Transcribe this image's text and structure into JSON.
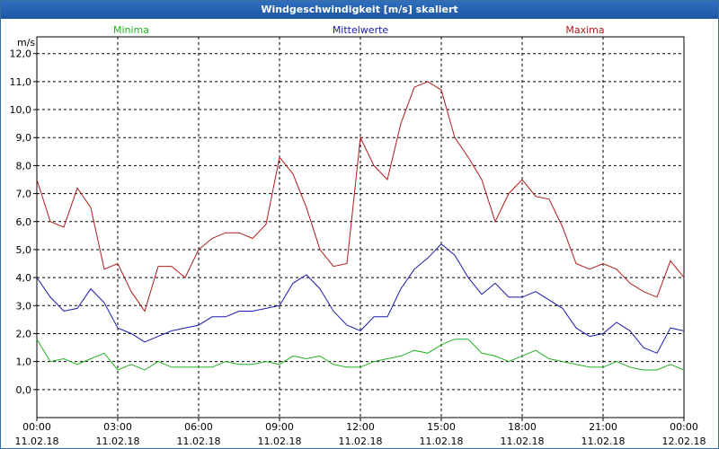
{
  "window": {
    "title": "Windgeschwindigkeit [m/s] skaliert"
  },
  "chart_data": {
    "type": "line",
    "title": "Windgeschwindigkeit [m/s] skaliert",
    "ylabel": "m/s",
    "xlabel": "",
    "ylim": [
      -1.0,
      12.6
    ],
    "xlim": [
      0,
      24
    ],
    "grid": true,
    "legend_placement": "top",
    "y_ticks": [
      "0,0",
      "1,0",
      "2,0",
      "3,0",
      "4,0",
      "5,0",
      "6,0",
      "7,0",
      "8,0",
      "9,0",
      "10,0",
      "11,0",
      "12,0"
    ],
    "x_ticks": [
      {
        "time": "00:00",
        "date": "11.02.18"
      },
      {
        "time": "03:00",
        "date": "11.02.18"
      },
      {
        "time": "06:00",
        "date": "11.02.18"
      },
      {
        "time": "09:00",
        "date": "11.02.18"
      },
      {
        "time": "12:00",
        "date": "11.02.18"
      },
      {
        "time": "15:00",
        "date": "11.02.18"
      },
      {
        "time": "18:00",
        "date": "11.02.18"
      },
      {
        "time": "21:00",
        "date": "11.02.18"
      },
      {
        "time": "00:00",
        "date": "12.02.18"
      }
    ],
    "series": [
      {
        "name": "Minima",
        "color": "#22b022",
        "points": [
          [
            0,
            1.8
          ],
          [
            0.5,
            1.0
          ],
          [
            1,
            1.1
          ],
          [
            1.5,
            0.9
          ],
          [
            2,
            1.1
          ],
          [
            2.5,
            1.3
          ],
          [
            3,
            0.7
          ],
          [
            3.5,
            0.9
          ],
          [
            4,
            0.7
          ],
          [
            4.5,
            1.0
          ],
          [
            5,
            0.8
          ],
          [
            5.5,
            0.8
          ],
          [
            6,
            0.8
          ],
          [
            6.5,
            0.8
          ],
          [
            7,
            1.0
          ],
          [
            7.5,
            0.9
          ],
          [
            8,
            0.9
          ],
          [
            8.5,
            1.0
          ],
          [
            9,
            0.9
          ],
          [
            9.5,
            1.2
          ],
          [
            10,
            1.1
          ],
          [
            10.5,
            1.2
          ],
          [
            11,
            0.9
          ],
          [
            11.5,
            0.8
          ],
          [
            12,
            0.8
          ],
          [
            12.5,
            1.0
          ],
          [
            13,
            1.1
          ],
          [
            13.5,
            1.2
          ],
          [
            14,
            1.4
          ],
          [
            14.5,
            1.3
          ],
          [
            15,
            1.6
          ],
          [
            15.5,
            1.8
          ],
          [
            16,
            1.8
          ],
          [
            16.5,
            1.3
          ],
          [
            17,
            1.2
          ],
          [
            17.5,
            1.0
          ],
          [
            18,
            1.2
          ],
          [
            18.5,
            1.4
          ],
          [
            19,
            1.1
          ],
          [
            19.5,
            1.0
          ],
          [
            20,
            0.9
          ],
          [
            20.5,
            0.8
          ],
          [
            21,
            0.8
          ],
          [
            21.5,
            1.0
          ],
          [
            22,
            0.8
          ],
          [
            22.5,
            0.7
          ],
          [
            23,
            0.7
          ],
          [
            23.5,
            0.9
          ],
          [
            24,
            0.7
          ]
        ]
      },
      {
        "name": "Mittelwerte",
        "color": "#1a1aaa",
        "points": [
          [
            0,
            4.0
          ],
          [
            0.5,
            3.3
          ],
          [
            1,
            2.8
          ],
          [
            1.5,
            2.9
          ],
          [
            2,
            3.6
          ],
          [
            2.5,
            3.1
          ],
          [
            3,
            2.2
          ],
          [
            3.5,
            2.0
          ],
          [
            4,
            1.7
          ],
          [
            4.5,
            1.9
          ],
          [
            5,
            2.1
          ],
          [
            5.5,
            2.2
          ],
          [
            6,
            2.3
          ],
          [
            6.5,
            2.6
          ],
          [
            7,
            2.6
          ],
          [
            7.5,
            2.8
          ],
          [
            8,
            2.8
          ],
          [
            8.5,
            2.9
          ],
          [
            9,
            3.0
          ],
          [
            9.5,
            3.8
          ],
          [
            10,
            4.1
          ],
          [
            10.5,
            3.6
          ],
          [
            11,
            2.8
          ],
          [
            11.5,
            2.3
          ],
          [
            12,
            2.1
          ],
          [
            12.5,
            2.6
          ],
          [
            13,
            2.6
          ],
          [
            13.5,
            3.6
          ],
          [
            14,
            4.3
          ],
          [
            14.5,
            4.7
          ],
          [
            15,
            5.2
          ],
          [
            15.5,
            4.8
          ],
          [
            16,
            4.0
          ],
          [
            16.5,
            3.4
          ],
          [
            17,
            3.8
          ],
          [
            17.5,
            3.3
          ],
          [
            18,
            3.3
          ],
          [
            18.5,
            3.5
          ],
          [
            19,
            3.2
          ],
          [
            19.5,
            2.9
          ],
          [
            20,
            2.2
          ],
          [
            20.5,
            1.9
          ],
          [
            21,
            2.0
          ],
          [
            21.5,
            2.4
          ],
          [
            22,
            2.1
          ],
          [
            22.5,
            1.5
          ],
          [
            23,
            1.3
          ],
          [
            23.5,
            2.2
          ],
          [
            24,
            2.1
          ]
        ]
      },
      {
        "name": "Maxima",
        "color": "#b01a1a",
        "points": [
          [
            0,
            7.5
          ],
          [
            0.5,
            6.0
          ],
          [
            1,
            5.8
          ],
          [
            1.5,
            7.2
          ],
          [
            2,
            6.5
          ],
          [
            2.5,
            4.3
          ],
          [
            3,
            4.5
          ],
          [
            3.5,
            3.5
          ],
          [
            4,
            2.8
          ],
          [
            4.5,
            4.4
          ],
          [
            5,
            4.4
          ],
          [
            5.5,
            4.0
          ],
          [
            6,
            5.0
          ],
          [
            6.5,
            5.4
          ],
          [
            7,
            5.6
          ],
          [
            7.5,
            5.6
          ],
          [
            8,
            5.4
          ],
          [
            8.5,
            5.9
          ],
          [
            9,
            8.3
          ],
          [
            9.5,
            7.7
          ],
          [
            10,
            6.5
          ],
          [
            10.5,
            5.0
          ],
          [
            11,
            4.4
          ],
          [
            11.5,
            4.5
          ],
          [
            12,
            9.0
          ],
          [
            12.5,
            8.0
          ],
          [
            13,
            7.5
          ],
          [
            13.5,
            9.5
          ],
          [
            14,
            10.8
          ],
          [
            14.5,
            11.0
          ],
          [
            15,
            10.7
          ],
          [
            15.5,
            9.0
          ],
          [
            16,
            8.3
          ],
          [
            16.5,
            7.5
          ],
          [
            17,
            6.0
          ],
          [
            17.5,
            7.0
          ],
          [
            18,
            7.5
          ],
          [
            18.5,
            6.9
          ],
          [
            19,
            6.8
          ],
          [
            19.5,
            5.8
          ],
          [
            20,
            4.5
          ],
          [
            20.5,
            4.3
          ],
          [
            21,
            4.5
          ],
          [
            21.5,
            4.3
          ],
          [
            22,
            3.8
          ],
          [
            22.5,
            3.5
          ],
          [
            23,
            3.3
          ],
          [
            23.5,
            4.6
          ],
          [
            24,
            4.0
          ]
        ]
      }
    ]
  }
}
